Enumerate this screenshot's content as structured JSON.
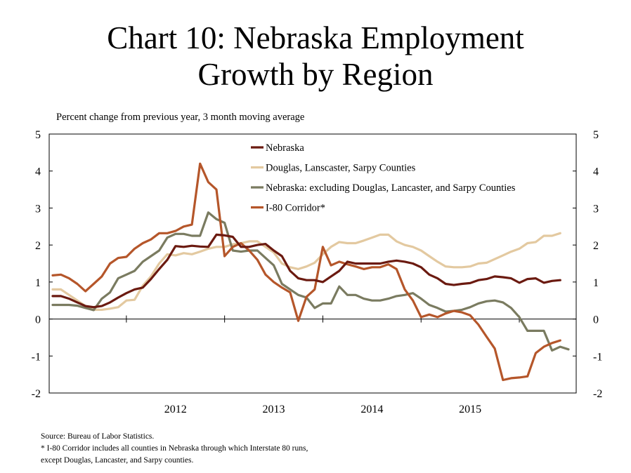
{
  "title_line1": "Chart 10: Nebraska Employment",
  "title_line2": "Growth by Region",
  "subtitle": "Percent change from previous year, 3 month moving average",
  "source_lines": [
    "Source: Bureau of Labor Statistics.",
    "* I-80 Corridor includes all counties in Nebraska through which Interstate 80 runs,",
    "except Douglas, Lancaster, and Sarpy counties."
  ],
  "chart_data": {
    "type": "line",
    "x_start": "2011-04",
    "frequency": "monthly",
    "x_tick_labels": [
      "2012",
      "2013",
      "2014",
      "2015"
    ],
    "ylim": [
      -2,
      5
    ],
    "y_ticks": [
      -2,
      -1,
      0,
      1,
      2,
      3,
      4,
      5
    ],
    "legend_position": "top-center",
    "grid": false,
    "series": [
      {
        "name": "Nebraska",
        "color": "#6b1a10",
        "values": [
          0.62,
          0.62,
          0.55,
          0.45,
          0.35,
          0.32,
          0.35,
          0.45,
          0.58,
          0.7,
          0.8,
          0.85,
          1.08,
          1.35,
          1.6,
          1.97,
          1.95,
          1.98,
          1.96,
          1.95,
          2.28,
          2.26,
          2.22,
          1.95,
          1.95,
          2.0,
          2.03,
          1.85,
          1.7,
          1.3,
          1.1,
          1.05,
          1.05,
          1.0,
          1.15,
          1.3,
          1.55,
          1.5,
          1.5,
          1.5,
          1.5,
          1.55,
          1.58,
          1.55,
          1.5,
          1.4,
          1.2,
          1.1,
          0.95,
          0.92,
          0.95,
          0.97,
          1.05,
          1.08,
          1.15,
          1.13,
          1.1,
          0.98,
          1.08,
          1.1,
          0.98,
          1.03,
          1.05
        ]
      },
      {
        "name": "Douglas, Lanscaster, Sarpy Counties",
        "color": "#e3c9a0",
        "values": [
          0.8,
          0.8,
          0.65,
          0.5,
          0.35,
          0.25,
          0.25,
          0.28,
          0.32,
          0.5,
          0.52,
          0.9,
          1.15,
          1.5,
          1.75,
          1.72,
          1.78,
          1.75,
          1.82,
          1.9,
          1.95,
          1.95,
          2.02,
          2.05,
          2.1,
          2.1,
          1.95,
          1.8,
          1.5,
          1.4,
          1.35,
          1.42,
          1.52,
          1.75,
          1.95,
          2.08,
          2.05,
          2.05,
          2.12,
          2.2,
          2.28,
          2.28,
          2.1,
          2.0,
          1.95,
          1.85,
          1.7,
          1.55,
          1.42,
          1.4,
          1.4,
          1.42,
          1.5,
          1.52,
          1.62,
          1.72,
          1.82,
          1.9,
          2.05,
          2.08,
          2.25,
          2.25,
          2.32
        ]
      },
      {
        "name": "Nebraska: excluding Douglas, Lancaster, and Sarpy Counties",
        "color": "#7a7b60",
        "values": [
          0.38,
          0.38,
          0.38,
          0.36,
          0.3,
          0.24,
          0.55,
          0.72,
          1.1,
          1.2,
          1.3,
          1.55,
          1.7,
          1.85,
          2.2,
          2.3,
          2.3,
          2.25,
          2.25,
          2.88,
          2.7,
          2.6,
          1.85,
          1.82,
          1.85,
          1.85,
          1.65,
          1.45,
          0.95,
          0.8,
          0.65,
          0.58,
          0.3,
          0.42,
          0.42,
          0.88,
          0.65,
          0.65,
          0.55,
          0.5,
          0.5,
          0.55,
          0.62,
          0.65,
          0.7,
          0.55,
          0.38,
          0.3,
          0.2,
          0.22,
          0.25,
          0.32,
          0.42,
          0.48,
          0.5,
          0.45,
          0.3,
          0.05,
          -0.32,
          -0.32,
          -0.32,
          -0.85,
          -0.75,
          -0.82
        ]
      },
      {
        "name": "I-80 Corridor*",
        "color": "#b5562a",
        "values": [
          1.18,
          1.2,
          1.1,
          0.95,
          0.75,
          0.95,
          1.15,
          1.5,
          1.65,
          1.68,
          1.9,
          2.05,
          2.15,
          2.32,
          2.32,
          2.38,
          2.5,
          2.55,
          4.2,
          3.7,
          3.5,
          1.7,
          1.95,
          2.05,
          1.85,
          1.6,
          1.2,
          1.0,
          0.85,
          0.72,
          -0.05,
          0.6,
          0.8,
          1.95,
          1.45,
          1.55,
          1.48,
          1.42,
          1.35,
          1.4,
          1.4,
          1.48,
          1.35,
          0.8,
          0.5,
          0.05,
          0.12,
          0.05,
          0.15,
          0.22,
          0.18,
          0.1,
          -0.15,
          -0.48,
          -0.8,
          -1.65,
          -1.6,
          -1.58,
          -1.55,
          -0.92,
          -0.75,
          -0.65,
          -0.58
        ]
      }
    ]
  }
}
